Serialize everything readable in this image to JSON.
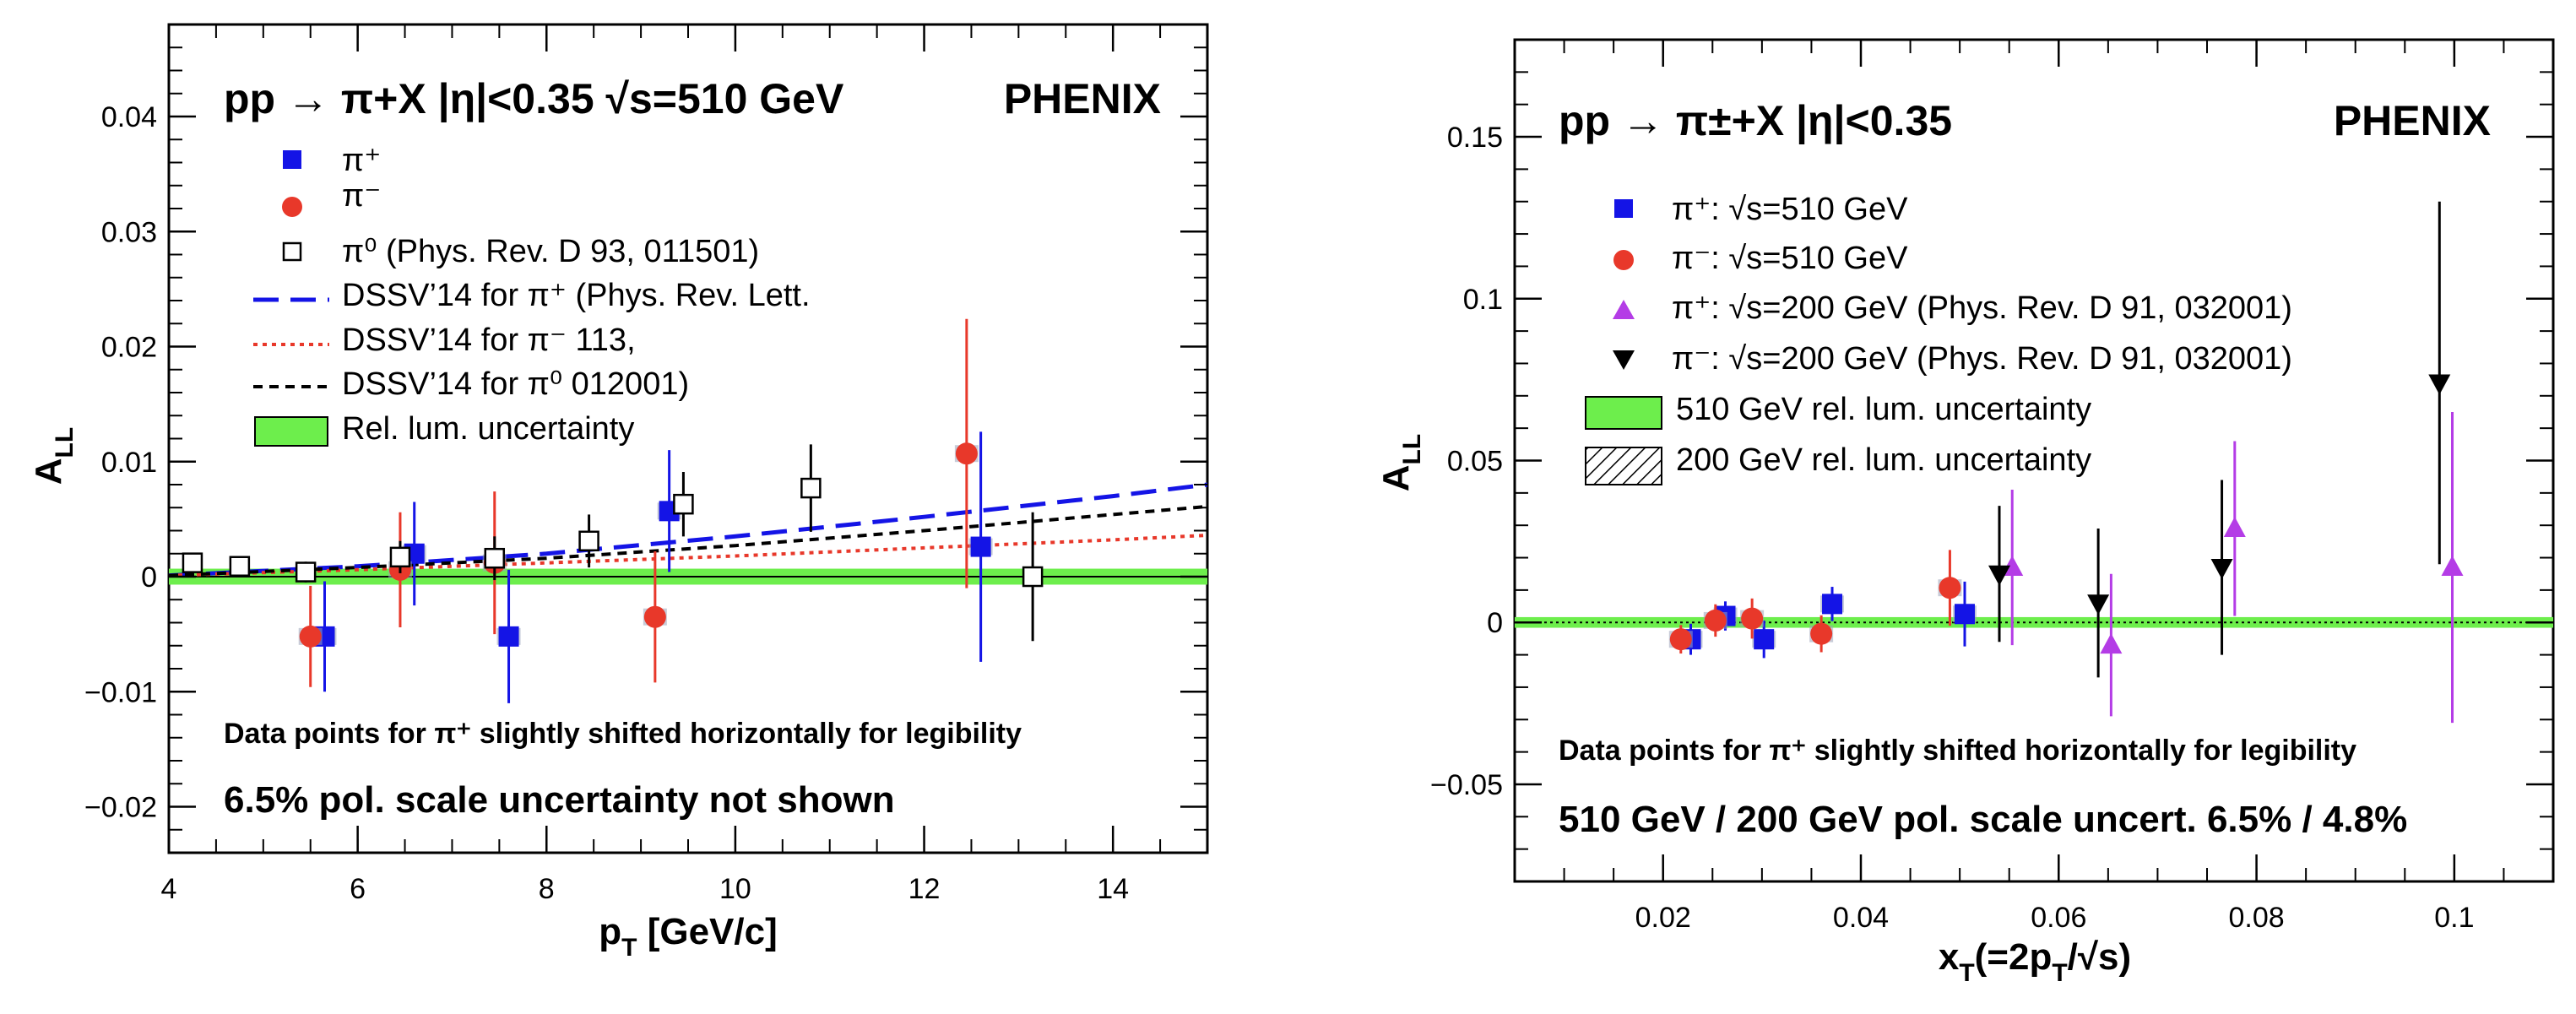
{
  "colors": {
    "pi_plus": "#1414e6",
    "pi_minus": "#e8382a",
    "pi_zero": "#000000",
    "pi_plus_200": "#b43ce6",
    "pi_minus_200": "#000000",
    "lum_band": "#6dee4c",
    "dssv_plus": "#1414e6",
    "dssv_minus": "#e8382a",
    "dssv_zero": "#000000"
  },
  "chart_data": [
    {
      "type": "scatter",
      "title": "pp → π+X |η|<0.35  √s=510 GeV",
      "experiment": "PHENIX",
      "xlabel": "p",
      "xlabel_sub": "T",
      "xlabel_suffix": " [GeV/c]",
      "ylabel": "A",
      "ylabel_sub": "LL",
      "xlim": [
        4,
        15
      ],
      "ylim": [
        -0.024,
        0.048
      ],
      "xticks": [
        4,
        6,
        8,
        10,
        12,
        14
      ],
      "yticks": [
        -0.02,
        -0.01,
        0,
        0.01,
        0.02,
        0.03,
        0.04
      ],
      "xtick_labels": [
        "4",
        "6",
        "8",
        "10",
        "12",
        "14"
      ],
      "ytick_labels": [
        "−0.02",
        "−0.01",
        "0",
        "0.01",
        "0.02",
        "0.03",
        "0.04"
      ],
      "grid": false,
      "legend": [
        {
          "label": "π⁺",
          "marker": "square",
          "color": "#1414e6"
        },
        {
          "label": "π⁻",
          "marker": "circle",
          "color": "#e8382a"
        },
        {
          "label": "π⁰ (Phys. Rev. D 93, 011501)",
          "marker": "open-square",
          "color": "#000000"
        },
        {
          "label": "DSSV’14 for π⁺ (Phys. Rev. Lett.",
          "marker": "long-dash",
          "color": "#1414e6"
        },
        {
          "label": "DSSV’14 for π⁻       113,",
          "marker": "dotted",
          "color": "#e8382a"
        },
        {
          "label": "DSSV’14 for π⁰     012001)",
          "marker": "dashed",
          "color": "#000000"
        },
        {
          "label": "Rel. lum. uncertainty",
          "marker": "box",
          "color": "#6dee4c"
        }
      ],
      "series": [
        {
          "name": "π⁺",
          "marker": "square",
          "color": "#1414e6",
          "points": [
            {
              "x": 5.65,
              "y": -0.0052,
              "err": 0.0048
            },
            {
              "x": 6.6,
              "y": 0.002,
              "err": 0.0045
            },
            {
              "x": 7.6,
              "y": -0.0052,
              "err": 0.0058
            },
            {
              "x": 9.3,
              "y": 0.0057,
              "err": 0.0053
            },
            {
              "x": 12.6,
              "y": 0.0026,
              "err": 0.01
            }
          ]
        },
        {
          "name": "π⁻",
          "marker": "circle",
          "color": "#e8382a",
          "points": [
            {
              "x": 5.5,
              "y": -0.0052,
              "err": 0.0044
            },
            {
              "x": 6.45,
              "y": 0.0006,
              "err": 0.005
            },
            {
              "x": 7.45,
              "y": 0.0012,
              "err": 0.0062
            },
            {
              "x": 9.15,
              "y": -0.0035,
              "err": 0.0057
            },
            {
              "x": 12.45,
              "y": 0.0107,
              "err": 0.0117
            }
          ]
        },
        {
          "name": "π⁰ (Phys. Rev. D 93, 011501)",
          "marker": "open-square",
          "color": "#000000",
          "points": [
            {
              "x": 4.25,
              "y": 0.0012,
              "err": 0.0006
            },
            {
              "x": 4.75,
              "y": 0.0009,
              "err": 0.0007
            },
            {
              "x": 5.45,
              "y": 0.0004,
              "err": 0.0009
            },
            {
              "x": 6.45,
              "y": 0.0017,
              "err": 0.0014
            },
            {
              "x": 7.45,
              "y": 0.0016,
              "err": 0.0019
            },
            {
              "x": 8.45,
              "y": 0.0031,
              "err": 0.0023
            },
            {
              "x": 9.45,
              "y": 0.0063,
              "err": 0.0028
            },
            {
              "x": 10.8,
              "y": 0.0077,
              "err": 0.0038
            },
            {
              "x": 13.15,
              "y": 0.0,
              "err": 0.0056
            }
          ]
        }
      ],
      "curves": [
        {
          "name": "DSSV’14 for π⁺",
          "style": "long-dash",
          "color": "#1414e6",
          "x": [
            4,
            6,
            8,
            10,
            12,
            14,
            15
          ],
          "y": [
            0.0001,
            0.0009,
            0.002,
            0.0035,
            0.0052,
            0.007,
            0.008
          ]
        },
        {
          "name": "DSSV’14 for π⁻",
          "style": "dotted",
          "color": "#e8382a",
          "x": [
            4,
            6,
            8,
            10,
            12,
            14,
            15
          ],
          "y": [
            0.0001,
            0.0006,
            0.0012,
            0.0018,
            0.0025,
            0.0032,
            0.0036
          ]
        },
        {
          "name": "DSSV’14 for π⁰",
          "style": "dashed",
          "color": "#000000",
          "x": [
            4,
            6,
            8,
            10,
            12,
            14,
            15
          ],
          "y": [
            0.0001,
            0.0008,
            0.0016,
            0.0027,
            0.004,
            0.0054,
            0.0061
          ]
        }
      ],
      "lum_band": [
        -0.0004,
        0.0004
      ],
      "annotations": [
        "Data points for  π⁺ slightly shifted horizontally for legibility",
        "6.5% pol. scale uncertainty not shown"
      ]
    },
    {
      "type": "scatter",
      "title": "pp → π±+X  |η|<0.35",
      "experiment": "PHENIX",
      "xlabel": "x",
      "xlabel_sub": "T",
      "xlabel_suffix": "(=2p",
      "xlabel_suffix_sub": "T",
      "xlabel_tail": "/√s)",
      "ylabel": "A",
      "ylabel_sub": "LL",
      "xlim": [
        0.005,
        0.11
      ],
      "ylim": [
        -0.08,
        0.18
      ],
      "xticks": [
        0.02,
        0.04,
        0.06,
        0.08,
        0.1
      ],
      "yticks": [
        -0.05,
        0,
        0.05,
        0.1,
        0.15
      ],
      "xtick_labels": [
        "0.02",
        "0.04",
        "0.06",
        "0.08",
        "0.1"
      ],
      "ytick_labels": [
        "−0.05",
        "0",
        "0.05",
        "0.1",
        "0.15"
      ],
      "grid": false,
      "legend": [
        {
          "label": "π⁺: √s=510 GeV",
          "marker": "square",
          "color": "#1414e6"
        },
        {
          "label": "π⁻: √s=510 GeV",
          "marker": "circle",
          "color": "#e8382a"
        },
        {
          "label": "π⁺: √s=200 GeV (Phys. Rev. D 91, 032001)",
          "marker": "triangle-up",
          "color": "#b43ce6"
        },
        {
          "label": "π⁻: √s=200 GeV (Phys. Rev. D 91, 032001)",
          "marker": "triangle-down",
          "color": "#000000"
        },
        {
          "label": "510 GeV rel. lum. uncertainty",
          "marker": "box",
          "color": "#6dee4c"
        },
        {
          "label": "200 GeV rel. lum. uncertainty",
          "marker": "hatched",
          "color": "#000000"
        }
      ],
      "series": [
        {
          "name": "π⁺: √s=510 GeV",
          "marker": "square",
          "color": "#1414e6",
          "points": [
            {
              "x": 0.0228,
              "y": -0.0052,
              "err": 0.0048
            },
            {
              "x": 0.0263,
              "y": 0.002,
              "err": 0.0045
            },
            {
              "x": 0.0302,
              "y": -0.0052,
              "err": 0.0058
            },
            {
              "x": 0.0371,
              "y": 0.0057,
              "err": 0.0053
            },
            {
              "x": 0.0505,
              "y": 0.0026,
              "err": 0.01
            }
          ]
        },
        {
          "name": "π⁻: √s=510 GeV",
          "marker": "circle",
          "color": "#e8382a",
          "points": [
            {
              "x": 0.0218,
              "y": -0.0052,
              "err": 0.0044
            },
            {
              "x": 0.0253,
              "y": 0.0006,
              "err": 0.005
            },
            {
              "x": 0.029,
              "y": 0.0012,
              "err": 0.0062
            },
            {
              "x": 0.036,
              "y": -0.0035,
              "err": 0.0057
            },
            {
              "x": 0.049,
              "y": 0.0107,
              "err": 0.0117
            }
          ]
        },
        {
          "name": "π⁺: √s=200 GeV (Phys. Rev. D 91, 032001)",
          "marker": "triangle-up",
          "color": "#b43ce6",
          "points": [
            {
              "x": 0.0553,
              "y": 0.017,
              "err": 0.024
            },
            {
              "x": 0.0653,
              "y": -0.007,
              "err": 0.022
            },
            {
              "x": 0.0778,
              "y": 0.029,
              "err": 0.027
            },
            {
              "x": 0.0998,
              "y": 0.017,
              "err": 0.048
            }
          ]
        },
        {
          "name": "π⁻: √s=200 GeV (Phys. Rev. D 91, 032001)",
          "marker": "triangle-down",
          "color": "#000000",
          "points": [
            {
              "x": 0.054,
              "y": 0.015,
              "err": 0.021
            },
            {
              "x": 0.064,
              "y": 0.006,
              "err": 0.023
            },
            {
              "x": 0.0765,
              "y": 0.017,
              "err": 0.027
            },
            {
              "x": 0.0985,
              "y": 0.074,
              "err": 0.056
            }
          ]
        }
      ],
      "lum_band": [
        -0.0006,
        0.0006
      ],
      "annotations": [
        "Data points for  π⁺ slightly shifted horizontally for legibility",
        "510 GeV / 200 GeV pol. scale uncert. 6.5% / 4.8%"
      ]
    }
  ]
}
